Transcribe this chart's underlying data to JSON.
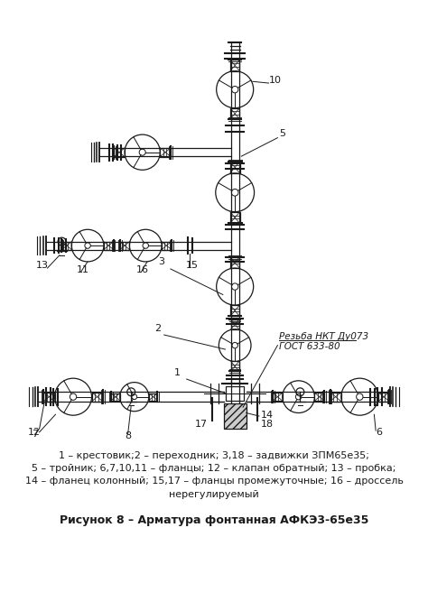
{
  "caption_line1": "1 – крестовик;2 – переходник; 3,18 – задвижки ЗПМ65е35;",
  "caption_line2": "5 – тройник; 6,7,10,11 – фланцы; 12 – клапан обратный; 13 – пробка;",
  "caption_line3": "14 – фланец колонный; 15,17 – фланцы промежуточные; 16 – дроссель",
  "caption_line4": "нерегулируемый",
  "figure_caption": "Рисунок 8 – Арматура фонтанная АФКЭ3-65е35",
  "rezba_label": "Резьба НКТ Ду073",
  "gost_label": "ГОСТ 633-80",
  "bg_color": "#ffffff",
  "lc": "#1a1a1a",
  "font_size_caption": 8.0,
  "font_size_figure": 9.0,
  "font_size_label": 8.0,
  "font_size_rezba": 7.5
}
